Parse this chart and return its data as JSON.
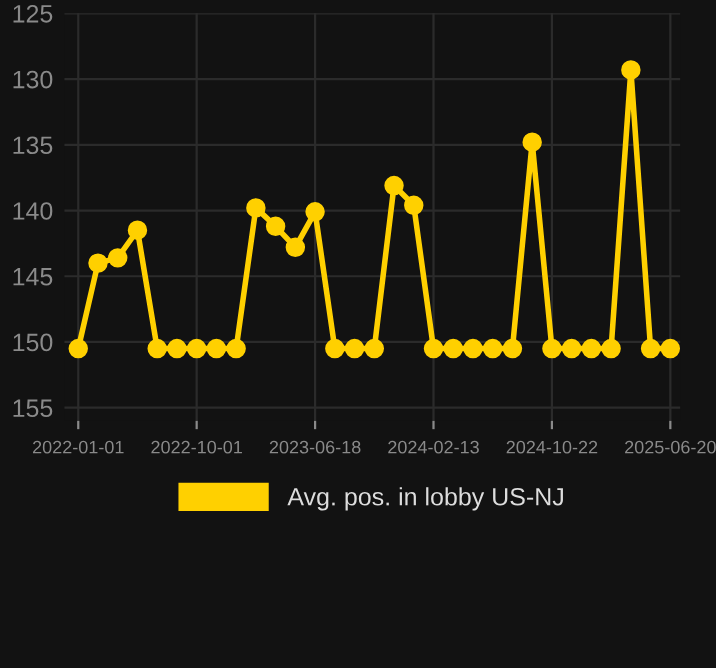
{
  "chart_data": {
    "type": "line",
    "categories": [
      "2022-01-01",
      null,
      null,
      null,
      null,
      null,
      "2022-10-01",
      null,
      null,
      null,
      null,
      null,
      "2023-06-18",
      null,
      null,
      null,
      null,
      null,
      "2024-02-13",
      null,
      null,
      null,
      null,
      null,
      "2024-10-22",
      null,
      null,
      null,
      null,
      null,
      "2025-06-20"
    ],
    "series": [
      {
        "name": "Avg. pos. in lobby US-NJ",
        "color": "#ffd000",
        "values": [
          150.5,
          144,
          143.6,
          141.5,
          150.5,
          150.5,
          150.5,
          150.5,
          150.5,
          139.8,
          141.2,
          142.8,
          140.1,
          150.5,
          150.5,
          150.5,
          138.1,
          139.6,
          150.5,
          150.5,
          150.5,
          150.5,
          150.5,
          134.8,
          150.5,
          150.5,
          150.5,
          150.5,
          129.3,
          150.5,
          150.5
        ]
      }
    ],
    "ylim": [
      156,
      125
    ],
    "yticks": [
      125,
      130,
      135,
      140,
      145,
      150,
      155
    ],
    "grid": true,
    "legend": "bottom",
    "marker": "circle",
    "line_style": "solid"
  }
}
